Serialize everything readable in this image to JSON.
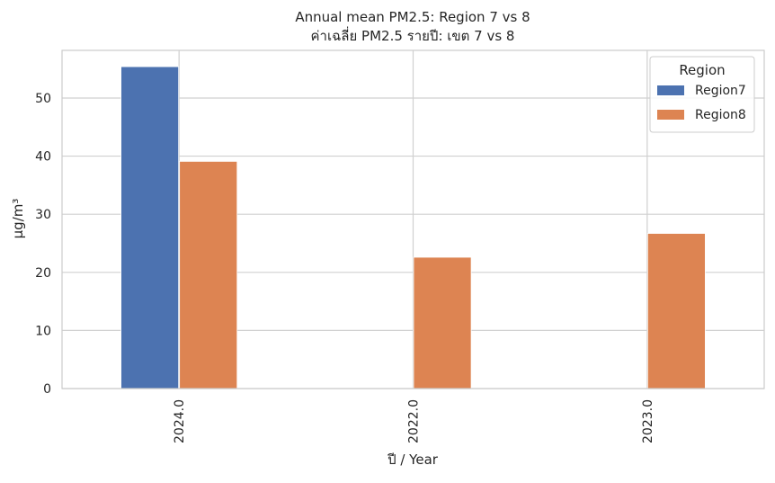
{
  "chart_data": {
    "type": "bar",
    "title": "Annual mean PM2.5: Region 7 vs 8",
    "subtitle": "ค่าเฉลี่ย PM2.5 รายปี: เขต 7 vs 8",
    "xlabel": "ปี / Year",
    "ylabel": "μg/m³",
    "categories": [
      "2024.0",
      "2022.0",
      "2023.0"
    ],
    "series": [
      {
        "name": "Region7",
        "values": [
          55.4,
          0,
          0
        ],
        "color": "#4c72b0"
      },
      {
        "name": "Region8",
        "values": [
          39.1,
          22.6,
          26.7
        ],
        "color": "#dd8452"
      }
    ],
    "ylim": [
      0,
      58.2
    ],
    "yticks": [
      0,
      10,
      20,
      30,
      40,
      50
    ],
    "grid": true,
    "legend": {
      "title": "Region",
      "placement": "top-right"
    }
  }
}
